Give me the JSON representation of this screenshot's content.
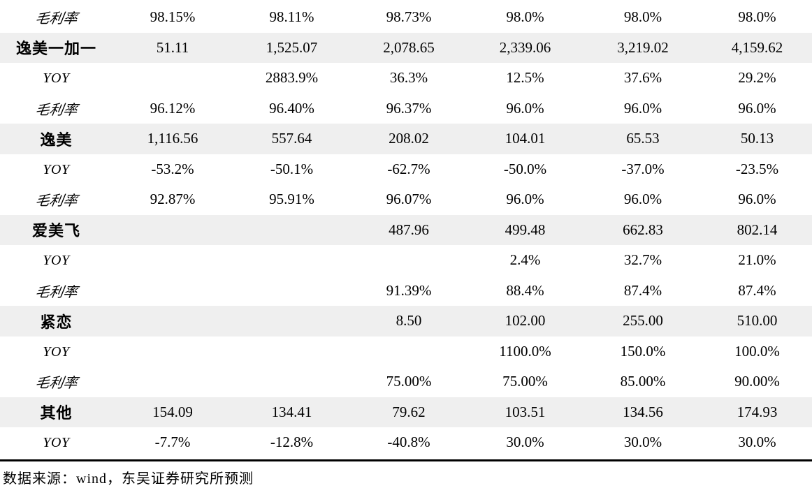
{
  "table": {
    "row_shade_color": "#efefef",
    "label_column": "",
    "rows": [
      {
        "label": "毛利率",
        "style": "metric",
        "shaded": false,
        "values": [
          "98.15%",
          "98.11%",
          "98.73%",
          "98.0%",
          "98.0%",
          "98.0%"
        ]
      },
      {
        "label": "逸美一加一",
        "style": "product",
        "shaded": true,
        "values": [
          "51.11",
          "1,525.07",
          "2,078.65",
          "2,339.06",
          "3,219.02",
          "4,159.62"
        ]
      },
      {
        "label": "YOY",
        "style": "yoy",
        "shaded": false,
        "values": [
          "",
          "2883.9%",
          "36.3%",
          "12.5%",
          "37.6%",
          "29.2%"
        ]
      },
      {
        "label": "毛利率",
        "style": "metric",
        "shaded": false,
        "values": [
          "96.12%",
          "96.40%",
          "96.37%",
          "96.0%",
          "96.0%",
          "96.0%"
        ]
      },
      {
        "label": "逸美",
        "style": "product",
        "shaded": true,
        "values": [
          "1,116.56",
          "557.64",
          "208.02",
          "104.01",
          "65.53",
          "50.13"
        ]
      },
      {
        "label": "YOY",
        "style": "yoy",
        "shaded": false,
        "values": [
          "-53.2%",
          "-50.1%",
          "-62.7%",
          "-50.0%",
          "-37.0%",
          "-23.5%"
        ]
      },
      {
        "label": "毛利率",
        "style": "metric",
        "shaded": false,
        "values": [
          "92.87%",
          "95.91%",
          "96.07%",
          "96.0%",
          "96.0%",
          "96.0%"
        ]
      },
      {
        "label": "爱美飞",
        "style": "product",
        "shaded": true,
        "values": [
          "",
          "",
          "487.96",
          "499.48",
          "662.83",
          "802.14"
        ]
      },
      {
        "label": "YOY",
        "style": "yoy",
        "shaded": false,
        "values": [
          "",
          "",
          "",
          "2.4%",
          "32.7%",
          "21.0%"
        ]
      },
      {
        "label": "毛利率",
        "style": "metric",
        "shaded": false,
        "values": [
          "",
          "",
          "91.39%",
          "88.4%",
          "87.4%",
          "87.4%"
        ]
      },
      {
        "label": "紧恋",
        "style": "product",
        "shaded": true,
        "values": [
          "",
          "",
          "8.50",
          "102.00",
          "255.00",
          "510.00"
        ]
      },
      {
        "label": "YOY",
        "style": "yoy",
        "shaded": false,
        "values": [
          "",
          "",
          "",
          "1100.0%",
          "150.0%",
          "100.0%"
        ]
      },
      {
        "label": "毛利率",
        "style": "metric",
        "shaded": false,
        "values": [
          "",
          "",
          "75.00%",
          "75.00%",
          "85.00%",
          "90.00%"
        ]
      },
      {
        "label": "其他",
        "style": "product",
        "shaded": true,
        "values": [
          "154.09",
          "134.41",
          "79.62",
          "103.51",
          "134.56",
          "174.93"
        ]
      },
      {
        "label": "YOY",
        "style": "yoy",
        "shaded": false,
        "values": [
          "-7.7%",
          "-12.8%",
          "-40.8%",
          "30.0%",
          "30.0%",
          "30.0%"
        ]
      }
    ]
  },
  "footer": {
    "source_text": "数据来源：wind，东吴证券研究所预测"
  },
  "colors": {
    "shaded_row": "#efefef",
    "text": "#000000",
    "rule": "#000000"
  }
}
